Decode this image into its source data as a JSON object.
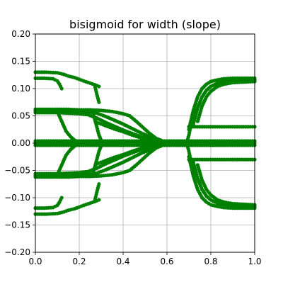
{
  "chart_data": {
    "type": "scatter",
    "title": "bisigmoid for width (slope)",
    "xlabel": "",
    "ylabel": "",
    "xlim": [
      0.0,
      1.0
    ],
    "ylim": [
      -0.2,
      0.2
    ],
    "xticks": [
      0.0,
      0.2,
      0.4,
      0.6,
      0.8,
      1.0
    ],
    "xtick_labels": [
      "0.0",
      "0.2",
      "0.4",
      "0.6",
      "0.8",
      "1.0"
    ],
    "yticks": [
      -0.2,
      -0.15,
      -0.1,
      -0.05,
      0.0,
      0.05,
      0.1,
      0.15,
      0.2
    ],
    "ytick_labels": [
      "−0.20",
      "−0.15",
      "−0.10",
      "−0.05",
      "0.00",
      "0.05",
      "0.10",
      "0.15",
      "0.20"
    ],
    "grid": true,
    "marker_color": "#008000",
    "series": [
      {
        "x": [
          0.0,
          0.05,
          0.1,
          0.13,
          0.15,
          0.18,
          0.2,
          0.22,
          0.25,
          0.27,
          0.29
        ],
        "y": [
          0.13,
          0.13,
          0.129,
          0.126,
          0.123,
          0.12,
          0.117,
          0.114,
          0.11,
          0.107,
          0.104
        ]
      },
      {
        "x": [
          0.0,
          0.04,
          0.08,
          0.1,
          0.11,
          0.12
        ],
        "y": [
          0.119,
          0.119,
          0.118,
          0.114,
          0.108,
          0.1
        ]
      },
      {
        "x": [
          0.0,
          0.05,
          0.1,
          0.15,
          0.2,
          0.25,
          0.3,
          0.35,
          0.4,
          0.43,
          0.46,
          0.49,
          0.52,
          0.55,
          0.58,
          0.61,
          0.64
        ],
        "y": [
          0.062,
          0.062,
          0.062,
          0.062,
          0.061,
          0.061,
          0.06,
          0.058,
          0.054,
          0.05,
          0.04,
          0.029,
          0.018,
          0.009,
          0.004,
          0.001,
          0.0
        ]
      },
      {
        "x": [
          0.0,
          0.05,
          0.1,
          0.15,
          0.2,
          0.25,
          0.28,
          0.32,
          0.36,
          0.4,
          0.44,
          0.48,
          0.52,
          0.56,
          0.6,
          0.64
        ],
        "y": [
          0.059,
          0.059,
          0.059,
          0.058,
          0.058,
          0.057,
          0.055,
          0.049,
          0.042,
          0.035,
          0.027,
          0.019,
          0.012,
          0.006,
          0.002,
          0.0
        ]
      },
      {
        "x": [
          0.0,
          0.05,
          0.1,
          0.15,
          0.2,
          0.24,
          0.28,
          0.32,
          0.36,
          0.4,
          0.44,
          0.48,
          0.52,
          0.56,
          0.6,
          0.64
        ],
        "y": [
          0.056,
          0.056,
          0.056,
          0.055,
          0.054,
          0.052,
          0.046,
          0.038,
          0.031,
          0.024,
          0.018,
          0.012,
          0.007,
          0.004,
          0.001,
          0.0
        ]
      },
      {
        "x": [
          0.28,
          0.32,
          0.36,
          0.4,
          0.44,
          0.48,
          0.52,
          0.56,
          0.6,
          0.64
        ],
        "y": [
          0.038,
          0.032,
          0.026,
          0.021,
          0.015,
          0.01,
          0.006,
          0.003,
          0.001,
          0.0
        ]
      },
      {
        "x": [
          0.1,
          0.12,
          0.14,
          0.16,
          0.18,
          0.2,
          0.22
        ],
        "y": [
          0.058,
          0.04,
          0.022,
          0.012,
          0.005,
          0.002,
          0.0
        ]
      },
      {
        "x": [
          0.26,
          0.27,
          0.28,
          0.29,
          0.3,
          0.31
        ],
        "y": [
          0.06,
          0.045,
          0.03,
          0.015,
          0.005,
          0.0
        ]
      },
      {
        "x": [
          0.27,
          0.28,
          0.29
        ],
        "y": [
          0.107,
          0.09,
          0.075
        ]
      },
      {
        "x": [
          0.0,
          0.1,
          0.2,
          0.3,
          0.4,
          0.5,
          0.6,
          0.7,
          0.8,
          0.9,
          1.0
        ],
        "y": [
          0.004,
          0.004,
          0.004,
          0.004,
          0.004,
          0.004,
          0.004,
          0.004,
          0.004,
          0.004,
          0.004
        ]
      },
      {
        "x": [
          0.0,
          0.1,
          0.2,
          0.3,
          0.4,
          0.5,
          0.6,
          0.7,
          0.8,
          0.9,
          1.0
        ],
        "y": [
          0.0,
          0.0,
          0.0,
          0.0,
          0.0,
          0.0,
          0.0,
          0.0,
          0.0,
          0.0,
          0.0
        ]
      },
      {
        "x": [
          0.0,
          0.1,
          0.2,
          0.3,
          0.4,
          0.5,
          0.6,
          0.7,
          0.8,
          0.9,
          1.0
        ],
        "y": [
          -0.004,
          -0.004,
          -0.004,
          -0.004,
          -0.004,
          -0.004,
          -0.004,
          -0.004,
          -0.004,
          -0.004,
          -0.004
        ]
      },
      {
        "x": [
          0.0,
          0.05,
          0.1,
          0.13,
          0.15,
          0.18,
          0.2,
          0.22,
          0.25,
          0.27,
          0.29
        ],
        "y": [
          -0.13,
          -0.13,
          -0.129,
          -0.126,
          -0.123,
          -0.12,
          -0.117,
          -0.114,
          -0.11,
          -0.107,
          -0.104
        ]
      },
      {
        "x": [
          0.0,
          0.04,
          0.08,
          0.1,
          0.11,
          0.12
        ],
        "y": [
          -0.119,
          -0.119,
          -0.118,
          -0.114,
          -0.108,
          -0.1
        ]
      },
      {
        "x": [
          0.0,
          0.05,
          0.1,
          0.15,
          0.2,
          0.25,
          0.3,
          0.35,
          0.4,
          0.43,
          0.46,
          0.49,
          0.52,
          0.55,
          0.58,
          0.61,
          0.64
        ],
        "y": [
          -0.062,
          -0.062,
          -0.062,
          -0.062,
          -0.061,
          -0.061,
          -0.06,
          -0.058,
          -0.054,
          -0.05,
          -0.04,
          -0.029,
          -0.018,
          -0.009,
          -0.004,
          -0.001,
          0.0
        ]
      },
      {
        "x": [
          0.0,
          0.05,
          0.1,
          0.15,
          0.2,
          0.25,
          0.28,
          0.32,
          0.36,
          0.4,
          0.44,
          0.48,
          0.52,
          0.56,
          0.6,
          0.64
        ],
        "y": [
          -0.059,
          -0.059,
          -0.059,
          -0.058,
          -0.058,
          -0.057,
          -0.055,
          -0.049,
          -0.042,
          -0.035,
          -0.027,
          -0.019,
          -0.012,
          -0.006,
          -0.002,
          0.0
        ]
      },
      {
        "x": [
          0.0,
          0.05,
          0.1,
          0.15,
          0.2,
          0.24,
          0.28,
          0.32,
          0.36,
          0.4,
          0.44,
          0.48,
          0.52,
          0.56,
          0.6,
          0.64
        ],
        "y": [
          -0.056,
          -0.056,
          -0.056,
          -0.055,
          -0.054,
          -0.052,
          -0.046,
          -0.038,
          -0.031,
          -0.024,
          -0.018,
          -0.012,
          -0.007,
          -0.004,
          -0.001,
          0.0
        ]
      },
      {
        "x": [
          0.28,
          0.32,
          0.36,
          0.4,
          0.44,
          0.48,
          0.52,
          0.56,
          0.6,
          0.64
        ],
        "y": [
          -0.038,
          -0.032,
          -0.026,
          -0.021,
          -0.015,
          -0.01,
          -0.006,
          -0.003,
          -0.001,
          0.0
        ]
      },
      {
        "x": [
          0.1,
          0.12,
          0.14,
          0.16,
          0.18,
          0.2,
          0.22
        ],
        "y": [
          -0.058,
          -0.04,
          -0.022,
          -0.012,
          -0.005,
          -0.002,
          0.0
        ]
      },
      {
        "x": [
          0.26,
          0.27,
          0.28,
          0.29,
          0.3,
          0.31
        ],
        "y": [
          -0.06,
          -0.045,
          -0.03,
          -0.015,
          -0.005,
          0.0
        ]
      },
      {
        "x": [
          0.27,
          0.28,
          0.29
        ],
        "y": [
          -0.107,
          -0.09,
          -0.075
        ]
      },
      {
        "x": [
          0.7,
          0.72,
          0.74,
          0.76,
          0.78,
          0.8,
          0.83,
          0.86,
          0.9,
          0.95,
          1.0
        ],
        "y": [
          0.025,
          0.06,
          0.085,
          0.1,
          0.108,
          0.113,
          0.116,
          0.118,
          0.119,
          0.119,
          0.119
        ]
      },
      {
        "x": [
          0.72,
          0.74,
          0.76,
          0.78,
          0.8,
          0.83,
          0.86,
          0.9,
          0.95,
          1.0
        ],
        "y": [
          0.035,
          0.065,
          0.085,
          0.097,
          0.104,
          0.11,
          0.113,
          0.115,
          0.116,
          0.116
        ]
      },
      {
        "x": [
          0.74,
          0.76,
          0.78,
          0.8,
          0.83,
          0.86,
          0.9,
          0.95,
          1.0
        ],
        "y": [
          0.04,
          0.068,
          0.085,
          0.095,
          0.104,
          0.108,
          0.111,
          0.112,
          0.113
        ]
      },
      {
        "x": [
          0.69,
          0.7,
          0.71,
          0.72,
          0.73
        ],
        "y": [
          0.0,
          0.015,
          0.035,
          0.05,
          0.06
        ]
      },
      {
        "x": [
          0.7,
          0.75,
          0.8,
          0.85,
          0.9,
          0.95,
          1.0
        ],
        "y": [
          0.03,
          0.03,
          0.03,
          0.03,
          0.03,
          0.03,
          0.03
        ]
      },
      {
        "x": [
          0.7,
          0.72,
          0.74,
          0.76,
          0.78,
          0.8,
          0.83,
          0.86,
          0.9,
          0.95,
          1.0
        ],
        "y": [
          -0.025,
          -0.06,
          -0.085,
          -0.1,
          -0.108,
          -0.113,
          -0.116,
          -0.118,
          -0.119,
          -0.119,
          -0.119
        ]
      },
      {
        "x": [
          0.72,
          0.74,
          0.76,
          0.78,
          0.8,
          0.83,
          0.86,
          0.9,
          0.95,
          1.0
        ],
        "y": [
          -0.035,
          -0.065,
          -0.085,
          -0.097,
          -0.104,
          -0.11,
          -0.113,
          -0.115,
          -0.116,
          -0.116
        ]
      },
      {
        "x": [
          0.74,
          0.76,
          0.78,
          0.8,
          0.83,
          0.86,
          0.9,
          0.95,
          1.0
        ],
        "y": [
          -0.04,
          -0.068,
          -0.085,
          -0.095,
          -0.104,
          -0.108,
          -0.111,
          -0.112,
          -0.113
        ]
      },
      {
        "x": [
          0.69,
          0.7,
          0.71,
          0.72,
          0.73
        ],
        "y": [
          0.0,
          -0.015,
          -0.035,
          -0.05,
          -0.06
        ]
      },
      {
        "x": [
          0.7,
          0.75,
          0.8,
          0.85,
          0.9,
          0.95,
          1.0
        ],
        "y": [
          -0.03,
          -0.03,
          -0.03,
          -0.03,
          -0.03,
          -0.03,
          -0.03
        ]
      }
    ]
  }
}
